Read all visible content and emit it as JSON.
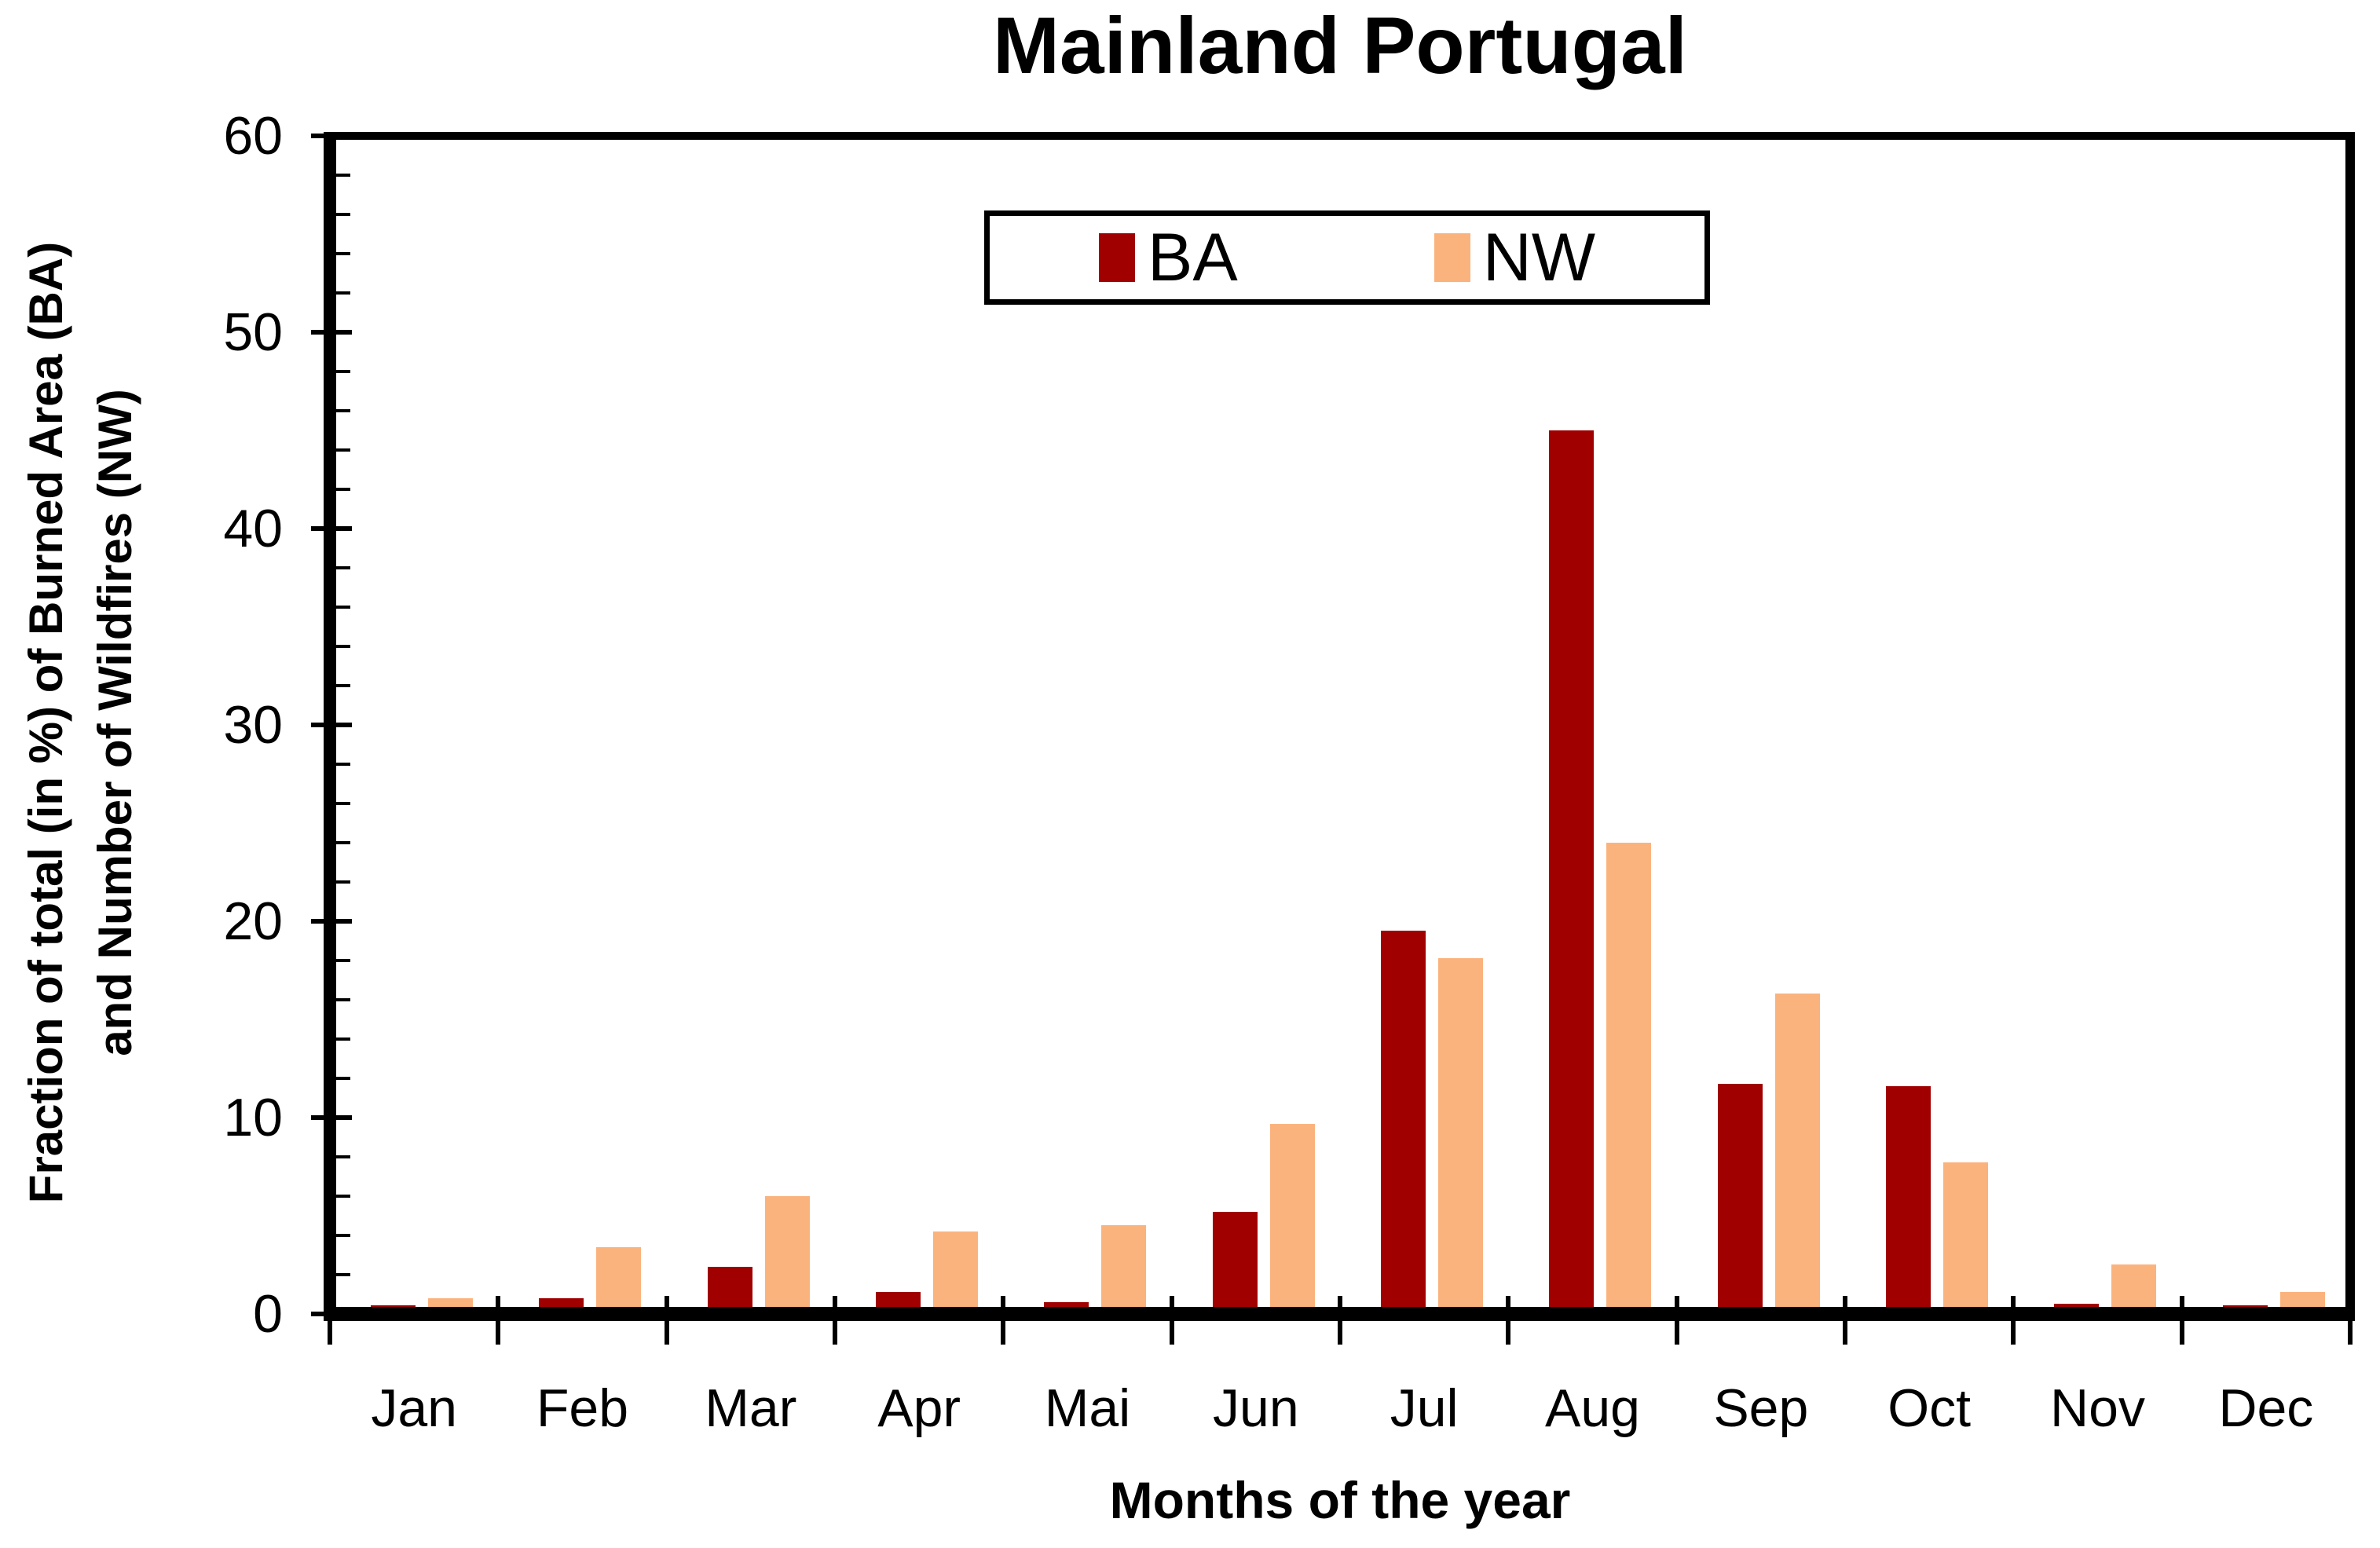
{
  "chart_data": {
    "type": "bar",
    "title": "Mainland Portugal",
    "xlabel": "Months of the year",
    "ylabel_line1": "Fraction of total (in %) of Burned Area (BA)",
    "ylabel_line2": "and Number of Wildfires (NW)",
    "categories": [
      "Jan",
      "Feb",
      "Mar",
      "Apr",
      "Mai",
      "Jun",
      "Jul",
      "Aug",
      "Sep",
      "Oct",
      "Nov",
      "Dec"
    ],
    "series": [
      {
        "name": "BA",
        "color": "#A00000",
        "values": [
          0.1,
          0.8,
          2.4,
          1.1,
          0.6,
          5.2,
          19.5,
          45.0,
          11.7,
          11.6,
          0.5,
          0.2
        ]
      },
      {
        "name": "NW",
        "color": "#FBB37E",
        "values": [
          0.8,
          3.4,
          6.0,
          4.2,
          4.5,
          9.7,
          18.1,
          24.0,
          16.3,
          7.7,
          2.5,
          1.1
        ]
      }
    ],
    "ylim": [
      0,
      60
    ],
    "y_major_ticks": [
      0,
      10,
      20,
      30,
      40,
      50,
      60
    ],
    "y_minor_step": 2,
    "grid": "off",
    "legend_position": "top-center",
    "frame_color": "#000000",
    "background_color": "#FFFFFF"
  }
}
